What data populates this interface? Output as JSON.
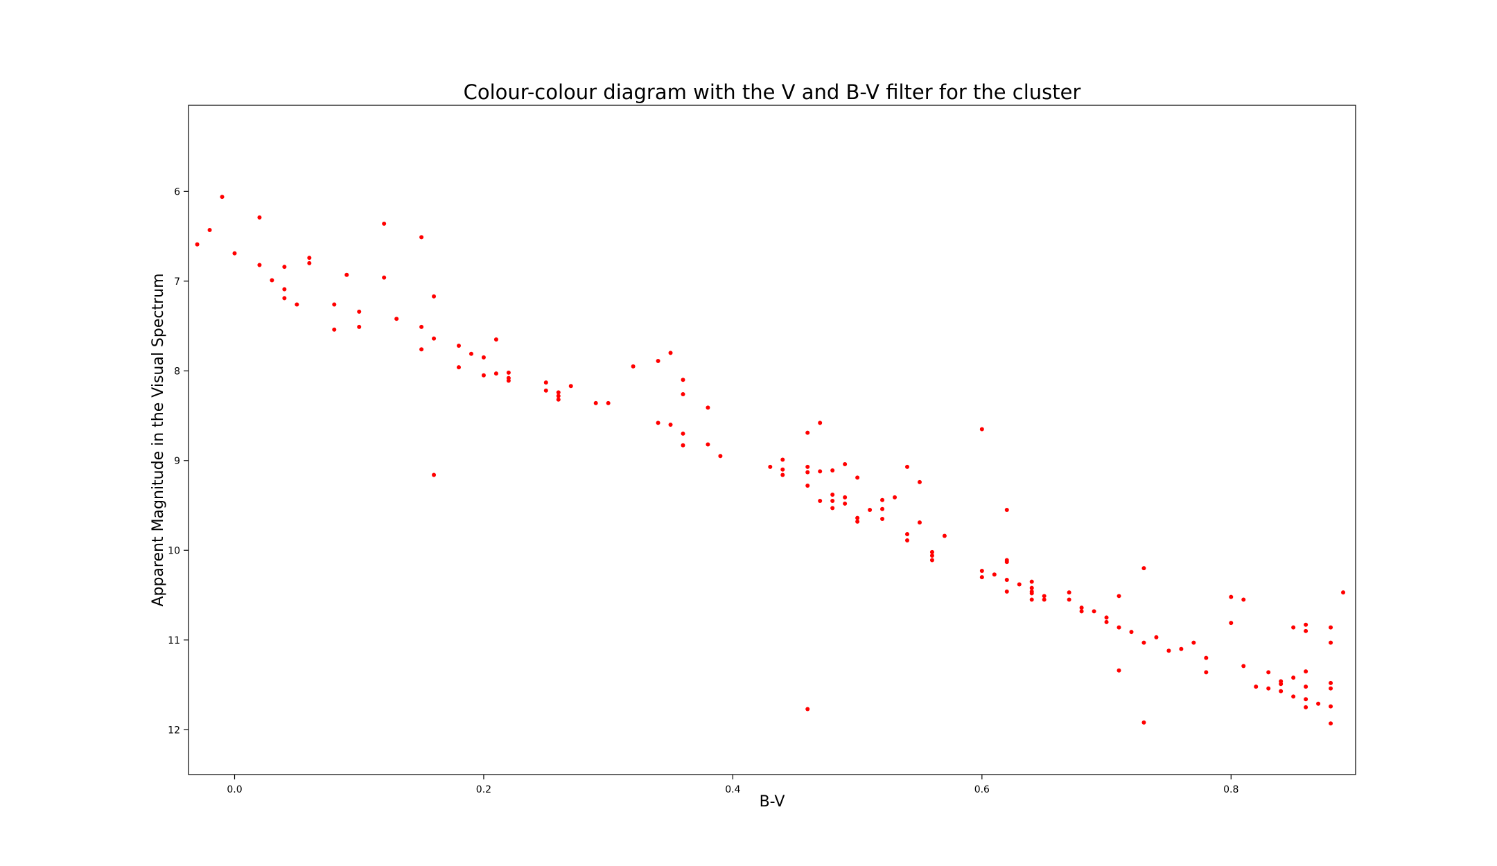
{
  "chart_data": {
    "type": "scatter",
    "title": "Colour-colour diagram with the V and B-V filter for the cluster",
    "xlabel": "B-V",
    "ylabel": "Apparent Magnitude in the Visual Spectrum",
    "xlim": [
      -0.037,
      0.9
    ],
    "ylim": [
      12.5,
      5.04
    ],
    "y_inverted": true,
    "grid": false,
    "xticks": [
      0.0,
      0.2,
      0.4,
      0.6,
      0.8
    ],
    "xtick_labels": [
      "0.0",
      "0.2",
      "0.4",
      "0.6",
      "0.8"
    ],
    "yticks": [
      6,
      7,
      8,
      9,
      10,
      11,
      12
    ],
    "ytick_labels": [
      "6",
      "7",
      "8",
      "9",
      "10",
      "11",
      "12"
    ],
    "marker_color": "#ff0000",
    "series": [
      {
        "x": [
          -0.03,
          -0.02,
          -0.01,
          0.0,
          0.02,
          0.02,
          0.03,
          0.04,
          0.04,
          0.04,
          0.05,
          0.06,
          0.06,
          0.08,
          0.08,
          0.09,
          0.1,
          0.1,
          0.12,
          0.12,
          0.13,
          0.15,
          0.15,
          0.15,
          0.16,
          0.16,
          0.16,
          0.18,
          0.18,
          0.19,
          0.2,
          0.2,
          0.21,
          0.21,
          0.22,
          0.22,
          0.22,
          0.25,
          0.25,
          0.26,
          0.26,
          0.26,
          0.27,
          0.29,
          0.3,
          0.32,
          0.34,
          0.34,
          0.35,
          0.35,
          0.36,
          0.36,
          0.36,
          0.36,
          0.38,
          0.38,
          0.39,
          0.43,
          0.44,
          0.44,
          0.44,
          0.46,
          0.46,
          0.46,
          0.46,
          0.46,
          0.47,
          0.47,
          0.47,
          0.48,
          0.48,
          0.48,
          0.48,
          0.49,
          0.49,
          0.49,
          0.5,
          0.5,
          0.5,
          0.51,
          0.52,
          0.52,
          0.52,
          0.53,
          0.54,
          0.54,
          0.54,
          0.55,
          0.55,
          0.56,
          0.56,
          0.56,
          0.57,
          0.6,
          0.6,
          0.6,
          0.61,
          0.62,
          0.62,
          0.62,
          0.62,
          0.62,
          0.63,
          0.64,
          0.64,
          0.64,
          0.64,
          0.64,
          0.65,
          0.65,
          0.67,
          0.67,
          0.68,
          0.68,
          0.69,
          0.7,
          0.7,
          0.71,
          0.71,
          0.71,
          0.72,
          0.73,
          0.73,
          0.73,
          0.74,
          0.75,
          0.76,
          0.77,
          0.78,
          0.78,
          0.8,
          0.8,
          0.81,
          0.81,
          0.82,
          0.83,
          0.83,
          0.84,
          0.84,
          0.84,
          0.85,
          0.85,
          0.85,
          0.86,
          0.86,
          0.86,
          0.86,
          0.86,
          0.86,
          0.87,
          0.88,
          0.88,
          0.88,
          0.88,
          0.88,
          0.88,
          0.89
        ],
        "y": [
          6.59,
          6.43,
          6.06,
          6.69,
          6.29,
          6.82,
          6.99,
          6.84,
          7.09,
          7.19,
          7.26,
          6.74,
          6.8,
          7.26,
          7.54,
          6.93,
          7.34,
          7.51,
          6.36,
          6.96,
          7.42,
          6.51,
          7.51,
          7.76,
          7.17,
          7.64,
          9.16,
          7.72,
          7.96,
          7.81,
          7.85,
          8.05,
          7.65,
          8.03,
          8.02,
          8.08,
          8.11,
          8.13,
          8.22,
          8.24,
          8.28,
          8.32,
          8.17,
          8.36,
          8.36,
          7.95,
          7.89,
          8.58,
          7.8,
          8.6,
          8.1,
          8.26,
          8.7,
          8.83,
          8.41,
          8.82,
          8.95,
          9.07,
          8.99,
          9.1,
          9.16,
          8.69,
          9.07,
          9.13,
          9.28,
          11.77,
          8.58,
          9.12,
          9.45,
          9.11,
          9.38,
          9.45,
          9.53,
          9.04,
          9.41,
          9.48,
          9.19,
          9.64,
          9.68,
          9.55,
          9.44,
          9.54,
          9.65,
          9.41,
          9.07,
          9.82,
          9.89,
          9.24,
          9.69,
          10.02,
          10.06,
          10.11,
          9.84,
          8.65,
          10.23,
          10.3,
          10.27,
          9.55,
          10.11,
          10.13,
          10.33,
          10.46,
          10.38,
          10.35,
          10.42,
          10.46,
          10.48,
          10.55,
          10.51,
          10.55,
          10.47,
          10.55,
          10.64,
          10.68,
          10.68,
          10.75,
          10.8,
          10.51,
          10.86,
          11.34,
          10.91,
          10.2,
          11.03,
          11.92,
          10.97,
          11.12,
          11.1,
          11.03,
          11.2,
          11.36,
          10.52,
          10.81,
          10.55,
          11.29,
          11.52,
          11.36,
          11.54,
          11.46,
          11.49,
          11.57,
          10.86,
          11.42,
          11.63,
          10.83,
          10.9,
          11.35,
          11.52,
          11.66,
          11.75,
          11.71,
          10.86,
          11.03,
          11.48,
          11.54,
          11.74,
          11.93,
          10.47
        ]
      }
    ]
  }
}
